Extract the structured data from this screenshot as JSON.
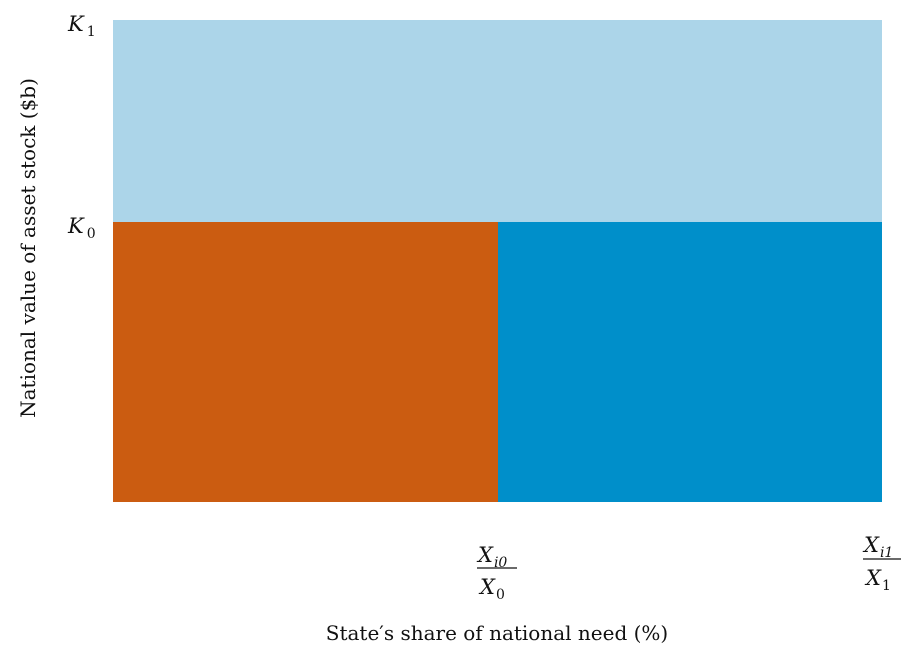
{
  "x_axis": {
    "title": "State′s share of national need (%)",
    "ticks": [
      {
        "num_var": "X",
        "num_sub": "i0",
        "den_var": "X",
        "den_sub": "0"
      },
      {
        "num_var": "X",
        "num_sub": "i1",
        "den_var": "X",
        "den_sub": "1"
      }
    ]
  },
  "y_axis": {
    "title": "National value of asset stock ($b)",
    "ticks": [
      {
        "var": "K",
        "sub": "1"
      },
      {
        "var": "K",
        "sub": "0"
      }
    ]
  },
  "regions": {
    "upper_fill_color": "#acd5e9",
    "lower_left_fill_color": "#cb5c11",
    "lower_right_fill_color": "#008fca"
  }
}
